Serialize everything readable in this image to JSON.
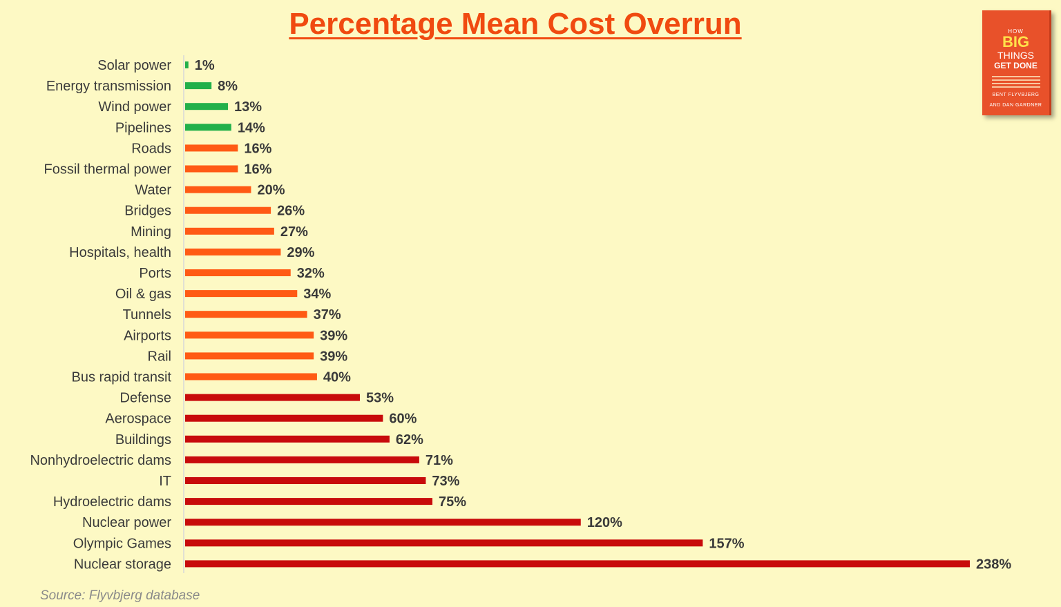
{
  "title": "Percentage Mean Cost Overrun",
  "source": "Source: Flyvbjerg database",
  "book": {
    "small": "HOW",
    "big": "BIG",
    "mid": "THINGS",
    "mid2": "GET DONE",
    "authors": [
      "BENT FLYVBJERG",
      "AND DAN GARDNER"
    ]
  },
  "colors": {
    "green": "#22b04a",
    "orange": "#ff5a14",
    "red": "#c80b0b",
    "title": "#f04a10"
  },
  "chart_data": {
    "type": "bar",
    "orientation": "horizontal",
    "title": "Percentage Mean Cost Overrun",
    "xlabel": "",
    "ylabel": "",
    "grid": false,
    "legend": "none",
    "categories": [
      "Solar power",
      "Energy transmission",
      "Wind power",
      "Pipelines",
      "Roads",
      "Fossil thermal power",
      "Water",
      "Bridges",
      "Mining",
      "Hospitals, health",
      "Ports",
      "Oil & gas",
      "Tunnels",
      "Airports",
      "Rail",
      "Bus rapid transit",
      "Defense",
      "Aerospace",
      "Buildings",
      "Nonhydroelectric dams",
      "IT",
      "Hydroelectric dams",
      "Nuclear power",
      "Olympic Games",
      "Nuclear storage"
    ],
    "values": [
      1,
      8,
      13,
      14,
      16,
      16,
      20,
      26,
      27,
      29,
      32,
      34,
      37,
      39,
      39,
      40,
      53,
      60,
      62,
      71,
      73,
      75,
      120,
      157,
      238
    ],
    "value_labels": [
      "1%",
      "8%",
      "13%",
      "14%",
      "16%",
      "16%",
      "20%",
      "26%",
      "27%",
      "29%",
      "32%",
      "34%",
      "37%",
      "39%",
      "39%",
      "40%",
      "53%",
      "60%",
      "62%",
      "71%",
      "73%",
      "75%",
      "120%",
      "157%",
      "238%"
    ],
    "bar_colors": [
      "green",
      "green",
      "green",
      "green",
      "orange",
      "orange",
      "orange",
      "orange",
      "orange",
      "orange",
      "orange",
      "orange",
      "orange",
      "orange",
      "orange",
      "orange",
      "red",
      "red",
      "red",
      "red",
      "red",
      "red",
      "red",
      "red",
      "red"
    ],
    "xlim": [
      0,
      238
    ]
  }
}
